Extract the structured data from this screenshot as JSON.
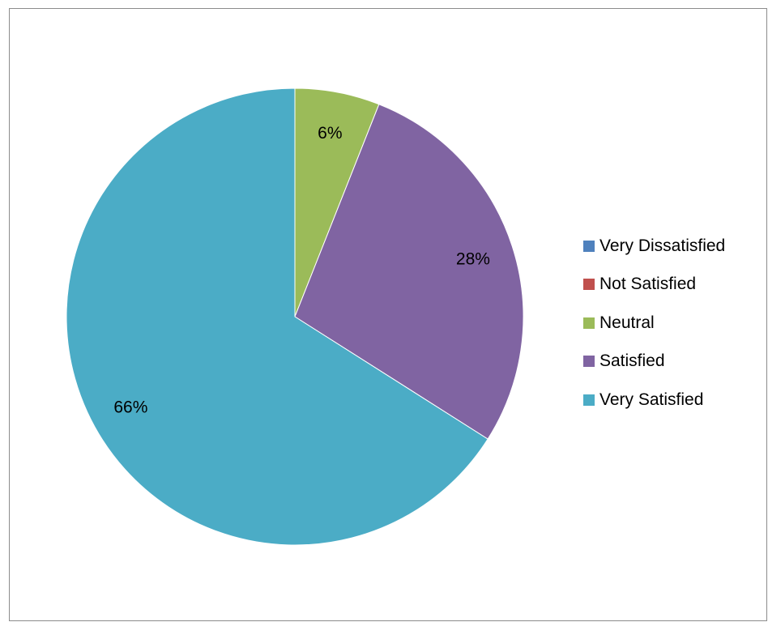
{
  "chart_data": {
    "type": "pie",
    "title": "",
    "categories": [
      "Very Dissatisfied",
      "Not Satisfied",
      "Neutral",
      "Satisfied",
      "Very Satisfied"
    ],
    "values": [
      0,
      0,
      6,
      28,
      66
    ],
    "data_labels": [
      "",
      "",
      "6%",
      "28%",
      "66%"
    ],
    "colors": [
      "#4f81bd",
      "#c0504d",
      "#9bbb59",
      "#8064a2",
      "#4bacc6"
    ],
    "start_angle_deg": 0,
    "direction": "clockwise",
    "legend_position": "right"
  }
}
